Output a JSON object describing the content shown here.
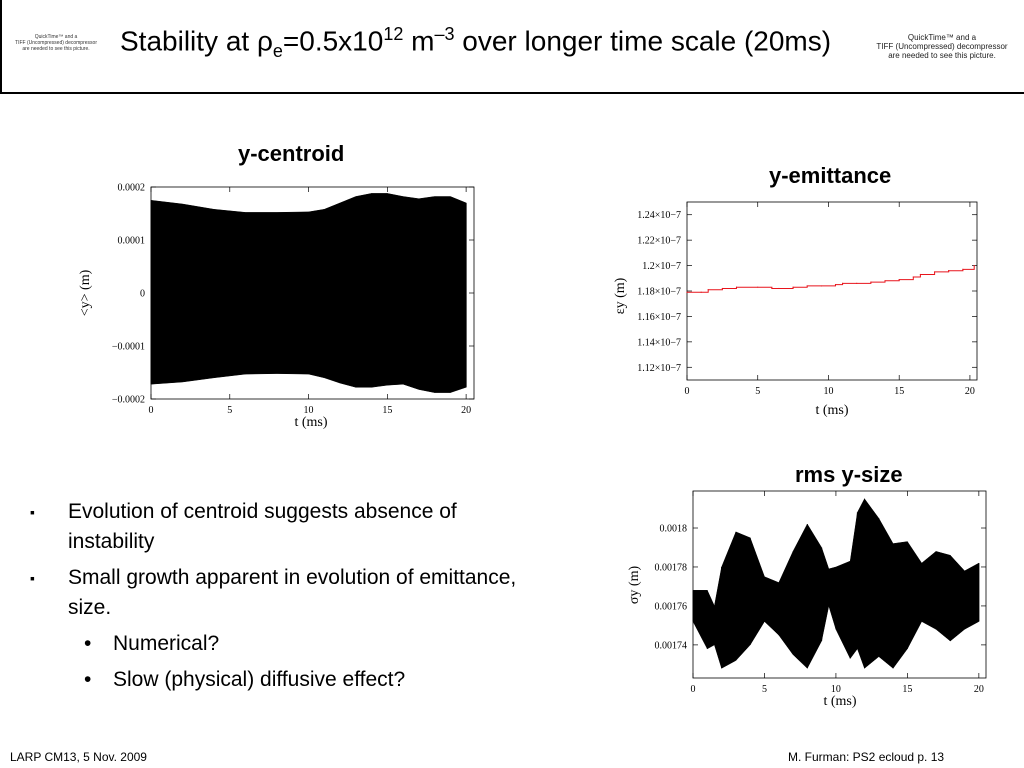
{
  "header": {
    "title_prefix": "Stability at ",
    "title_rho": "ρ",
    "title_sub": "e",
    "title_mid": "=0.5x10",
    "title_sup1": "12",
    "title_unit": " m",
    "title_sup2": "–3",
    "title_suffix": " over longer  time scale (20ms)",
    "qt_left_1": "QuickTime™ and a",
    "qt_left_2": "TIFF (Uncompressed) decompressor",
    "qt_left_3": "are needed to see this picture.",
    "qt_right_1": "QuickTime™ and a",
    "qt_right_2": "TIFF (Uncompressed) decompressor",
    "qt_right_3": "are needed to see this picture."
  },
  "plots": {
    "centroid_title": "y-centroid",
    "emittance_title": "y-emittance",
    "size_title": "rms y-size"
  },
  "bullets": [
    "Evolution of centroid suggests absence of instability",
    "Small growth apparent in evolution of emittance, size."
  ],
  "sub_bullets": [
    "Numerical?",
    "Slow (physical) diffusive effect?"
  ],
  "bullet_mark": "▪",
  "sub_bullet_mark": "•",
  "footer": {
    "left": "LARP CM13, 5 Nov. 2009",
    "right": "M. Furman: PS2 ecloud    p. 13"
  },
  "chart_data": [
    {
      "id": "centroid",
      "type": "area",
      "xlabel": "t (ms)",
      "ylabel": "<y> (m)",
      "xlim": [
        0,
        20.5
      ],
      "ylim": [
        -0.0002,
        0.0002
      ],
      "xticks": [
        "0",
        "5",
        "10",
        "15",
        "20"
      ],
      "xtick_values": [
        0,
        5,
        10,
        15,
        20
      ],
      "yticks": [
        "0.0002",
        "0.0001",
        "0",
        "−0.0001",
        "−0.0002"
      ],
      "ytick_values": [
        0.0002,
        0.0001,
        0,
        -0.0001,
        -0.0002
      ],
      "envelope_t": [
        0,
        2,
        4,
        6,
        8,
        10,
        11,
        12,
        13,
        14,
        15,
        16,
        17,
        18,
        19,
        20
      ],
      "envelope_upper": [
        0.000175,
        0.000168,
        0.000158,
        0.000152,
        0.000152,
        0.000153,
        0.000158,
        0.00017,
        0.000182,
        0.000188,
        0.000188,
        0.000182,
        0.000178,
        0.000182,
        0.000182,
        0.00017
      ],
      "envelope_lower": [
        -0.000172,
        -0.000168,
        -0.00016,
        -0.000153,
        -0.000152,
        -0.000153,
        -0.00016,
        -0.00017,
        -0.000178,
        -0.000178,
        -0.000174,
        -0.000172,
        -0.000182,
        -0.000188,
        -0.000188,
        -0.000178
      ],
      "color": "#000000"
    },
    {
      "id": "emittance",
      "type": "line",
      "xlabel": "t (ms)",
      "ylabel": "εy (m)",
      "xlim": [
        0,
        20.5
      ],
      "ylim": [
        1.11e-07,
        1.25e-07
      ],
      "xticks": [
        "0",
        "5",
        "10",
        "15",
        "20"
      ],
      "xtick_values": [
        0,
        5,
        10,
        15,
        20
      ],
      "yticks": [
        "1.24×10−7",
        "1.22×10−7",
        "1.2×10−7",
        "1.18×10−7",
        "1.16×10−7",
        "1.14×10−7",
        "1.12×10−7"
      ],
      "ytick_values": [
        1.24e-07,
        1.22e-07,
        1.2e-07,
        1.18e-07,
        1.16e-07,
        1.14e-07,
        1.12e-07
      ],
      "x": [
        0,
        1,
        1.5,
        2.5,
        3.5,
        5,
        6,
        6.5,
        7.5,
        8.5,
        9.5,
        10.5,
        11,
        12,
        13,
        14,
        15,
        16,
        16.5,
        17.5,
        18.5,
        19.5,
        20.3
      ],
      "y": [
        1.179e-07,
        1.179e-07,
        1.181e-07,
        1.182e-07,
        1.183e-07,
        1.183e-07,
        1.182e-07,
        1.182e-07,
        1.183e-07,
        1.184e-07,
        1.184e-07,
        1.185e-07,
        1.186e-07,
        1.186e-07,
        1.187e-07,
        1.188e-07,
        1.189e-07,
        1.191e-07,
        1.193e-07,
        1.195e-07,
        1.196e-07,
        1.197e-07,
        1.2e-07
      ],
      "color": "#e8141c"
    },
    {
      "id": "rms_size",
      "type": "area",
      "xlabel": "t (ms)",
      "ylabel": "σy (m)",
      "xlim": [
        0,
        20.5
      ],
      "ylim": [
        0.001723,
        0.001819
      ],
      "xticks": [
        "0",
        "5",
        "10",
        "15",
        "20"
      ],
      "xtick_values": [
        0,
        5,
        10,
        15,
        20
      ],
      "yticks": [
        "0.0018",
        "0.00178",
        "0.00176",
        "0.00174"
      ],
      "ytick_values": [
        0.0018,
        0.00178,
        0.00176,
        0.00174
      ],
      "envelope_t": [
        0,
        1,
        1.5,
        2,
        3,
        4,
        5,
        6,
        7,
        8,
        9,
        9.5,
        10,
        11,
        11.5,
        12,
        13,
        14,
        15,
        16,
        17,
        18,
        19,
        20
      ],
      "envelope_upper": [
        0.001768,
        0.001768,
        0.00176,
        0.00178,
        0.001798,
        0.001795,
        0.001775,
        0.001772,
        0.001788,
        0.001802,
        0.00179,
        0.001779,
        0.00178,
        0.001783,
        0.001808,
        0.001815,
        0.001805,
        0.001792,
        0.001793,
        0.001782,
        0.001788,
        0.001786,
        0.001778,
        0.001782
      ],
      "envelope_lower": [
        0.001752,
        0.001738,
        0.00174,
        0.001728,
        0.001732,
        0.00174,
        0.001752,
        0.001745,
        0.001735,
        0.001728,
        0.001742,
        0.00176,
        0.001748,
        0.001733,
        0.001738,
        0.001728,
        0.001734,
        0.001728,
        0.001738,
        0.001752,
        0.001748,
        0.001742,
        0.001748,
        0.001752
      ],
      "color": "#000000"
    }
  ]
}
